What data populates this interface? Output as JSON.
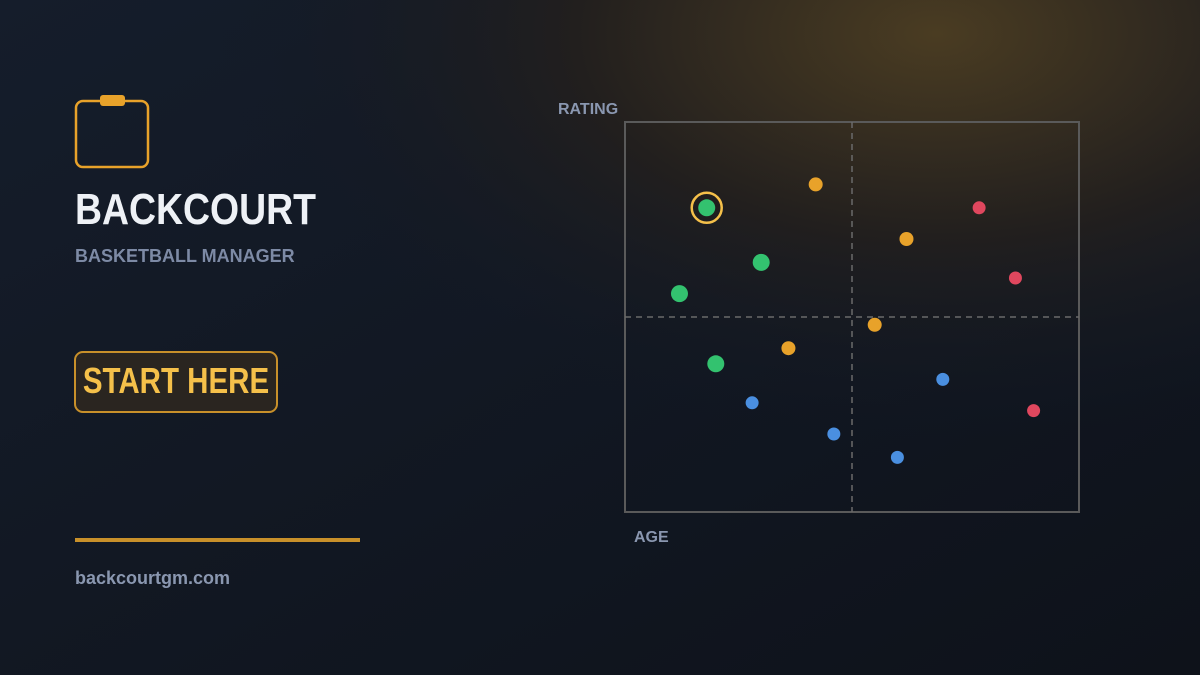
{
  "brand": {
    "title": "BACKCOURT",
    "subtitle": "BASKETBALL MANAGER"
  },
  "button": "START HERE",
  "url": "backcourtgm.com",
  "chart_data": {
    "type": "scatter",
    "x_label": "AGE",
    "y_label": "RATING",
    "xlim": [
      0,
      100
    ],
    "ylim": [
      0,
      100
    ],
    "series": [
      {
        "color": "#33c26f",
        "x": [
          18,
          30,
          12,
          20
        ],
        "values": [
          78,
          64,
          56,
          38
        ]
      },
      {
        "color": "#e8a22a",
        "x": [
          42,
          62,
          55,
          36
        ],
        "values": [
          84,
          70,
          48,
          42
        ]
      },
      {
        "color": "#e0475e",
        "x": [
          78,
          86,
          90
        ],
        "values": [
          78,
          60,
          26
        ]
      },
      {
        "color": "#4a8fe0",
        "x": [
          28,
          46,
          70,
          60
        ],
        "values": [
          28,
          20,
          34,
          14
        ]
      }
    ]
  }
}
